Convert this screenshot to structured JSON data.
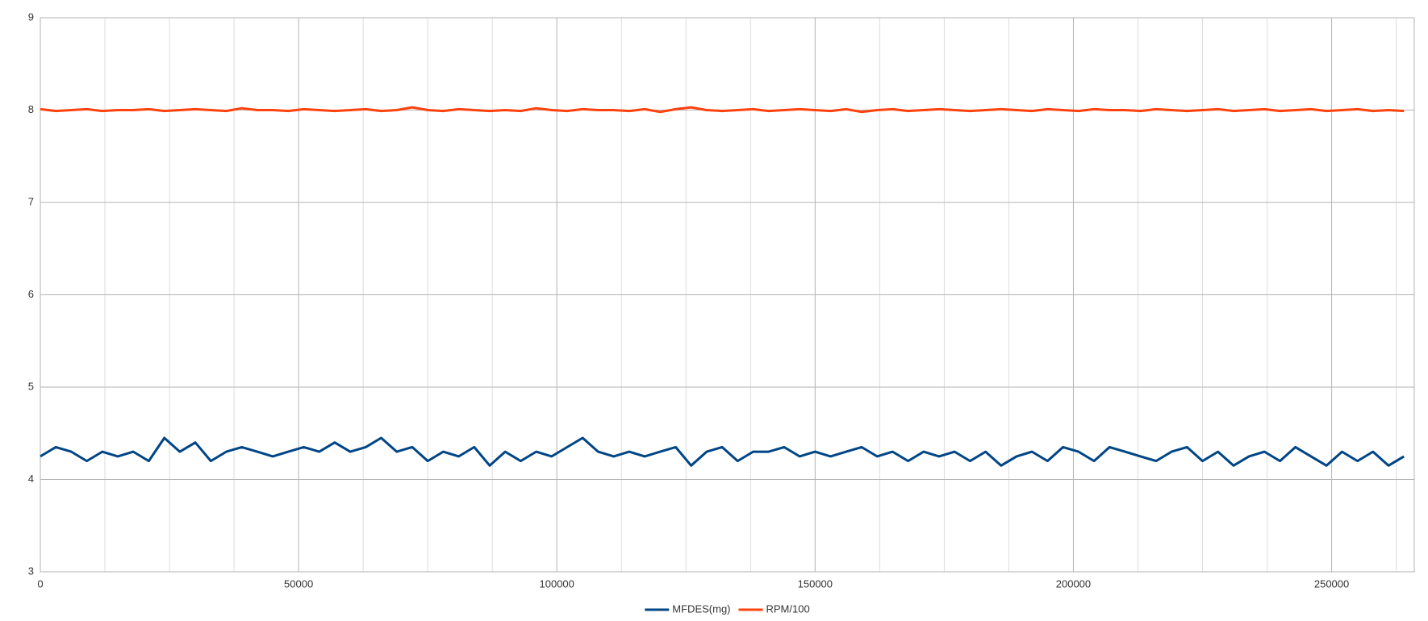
{
  "chart_data": {
    "type": "line",
    "x": [
      0,
      3000,
      6000,
      9000,
      12000,
      15000,
      18000,
      21000,
      24000,
      27000,
      30000,
      33000,
      36000,
      39000,
      42000,
      45000,
      48000,
      51000,
      54000,
      57000,
      60000,
      63000,
      66000,
      69000,
      72000,
      75000,
      78000,
      81000,
      84000,
      87000,
      90000,
      93000,
      96000,
      99000,
      102000,
      105000,
      108000,
      111000,
      114000,
      117000,
      120000,
      123000,
      126000,
      129000,
      132000,
      135000,
      138000,
      141000,
      144000,
      147000,
      150000,
      153000,
      156000,
      159000,
      162000,
      165000,
      168000,
      171000,
      174000,
      177000,
      180000,
      183000,
      186000,
      189000,
      192000,
      195000,
      198000,
      201000,
      204000,
      207000,
      210000,
      213000,
      216000,
      219000,
      222000,
      225000,
      228000,
      231000,
      234000,
      237000,
      240000,
      243000,
      246000,
      249000,
      252000,
      255000,
      258000,
      261000,
      264000
    ],
    "series": [
      {
        "name": "MFDES(mg)",
        "color": "#004586",
        "values": [
          4.25,
          4.35,
          4.3,
          4.2,
          4.3,
          4.25,
          4.3,
          4.2,
          4.45,
          4.3,
          4.4,
          4.2,
          4.3,
          4.35,
          4.3,
          4.25,
          4.3,
          4.35,
          4.3,
          4.4,
          4.3,
          4.35,
          4.45,
          4.3,
          4.35,
          4.2,
          4.3,
          4.25,
          4.35,
          4.15,
          4.3,
          4.2,
          4.3,
          4.25,
          4.35,
          4.45,
          4.3,
          4.25,
          4.3,
          4.25,
          4.3,
          4.35,
          4.15,
          4.3,
          4.35,
          4.2,
          4.3,
          4.3,
          4.35,
          4.25,
          4.3,
          4.25,
          4.3,
          4.35,
          4.25,
          4.3,
          4.2,
          4.3,
          4.25,
          4.3,
          4.2,
          4.3,
          4.15,
          4.25,
          4.3,
          4.2,
          4.35,
          4.3,
          4.2,
          4.35,
          4.3,
          4.25,
          4.2,
          4.3,
          4.35,
          4.2,
          4.3,
          4.15,
          4.25,
          4.3,
          4.2,
          4.35,
          4.25,
          4.15,
          4.3,
          4.2,
          4.3,
          4.15,
          4.25
        ]
      },
      {
        "name": "RPM/100",
        "color": "#ff420e",
        "values": [
          8.01,
          7.99,
          8.0,
          8.01,
          7.99,
          8.0,
          8.0,
          8.01,
          7.99,
          8.0,
          8.01,
          8.0,
          7.99,
          8.02,
          8.0,
          8.0,
          7.99,
          8.01,
          8.0,
          7.99,
          8.0,
          8.01,
          7.99,
          8.0,
          8.03,
          8.0,
          7.99,
          8.01,
          8.0,
          7.99,
          8.0,
          7.99,
          8.02,
          8.0,
          7.99,
          8.01,
          8.0,
          8.0,
          7.99,
          8.01,
          7.98,
          8.01,
          8.03,
          8.0,
          7.99,
          8.0,
          8.01,
          7.99,
          8.0,
          8.01,
          8.0,
          7.99,
          8.01,
          7.98,
          8.0,
          8.01,
          7.99,
          8.0,
          8.01,
          8.0,
          7.99,
          8.0,
          8.01,
          8.0,
          7.99,
          8.01,
          8.0,
          7.99,
          8.01,
          8.0,
          8.0,
          7.99,
          8.01,
          8.0,
          7.99,
          8.0,
          8.01,
          7.99,
          8.0,
          8.01,
          7.99,
          8.0,
          8.01,
          7.99,
          8.0,
          8.01,
          7.99,
          8.0,
          7.99
        ]
      }
    ],
    "xlim": [
      0,
      266000
    ],
    "xticks": [
      0,
      50000,
      100000,
      150000,
      200000,
      250000
    ],
    "xminorticks": [
      12500,
      25000,
      37500,
      62500,
      75000,
      87500,
      112500,
      125000,
      137500,
      162500,
      175000,
      187500,
      212500,
      225000,
      237500,
      262500
    ],
    "ylim": [
      3,
      9
    ],
    "yticks": [
      3,
      4,
      5,
      6,
      7,
      8,
      9
    ],
    "grid": true,
    "legend": "bottom"
  }
}
